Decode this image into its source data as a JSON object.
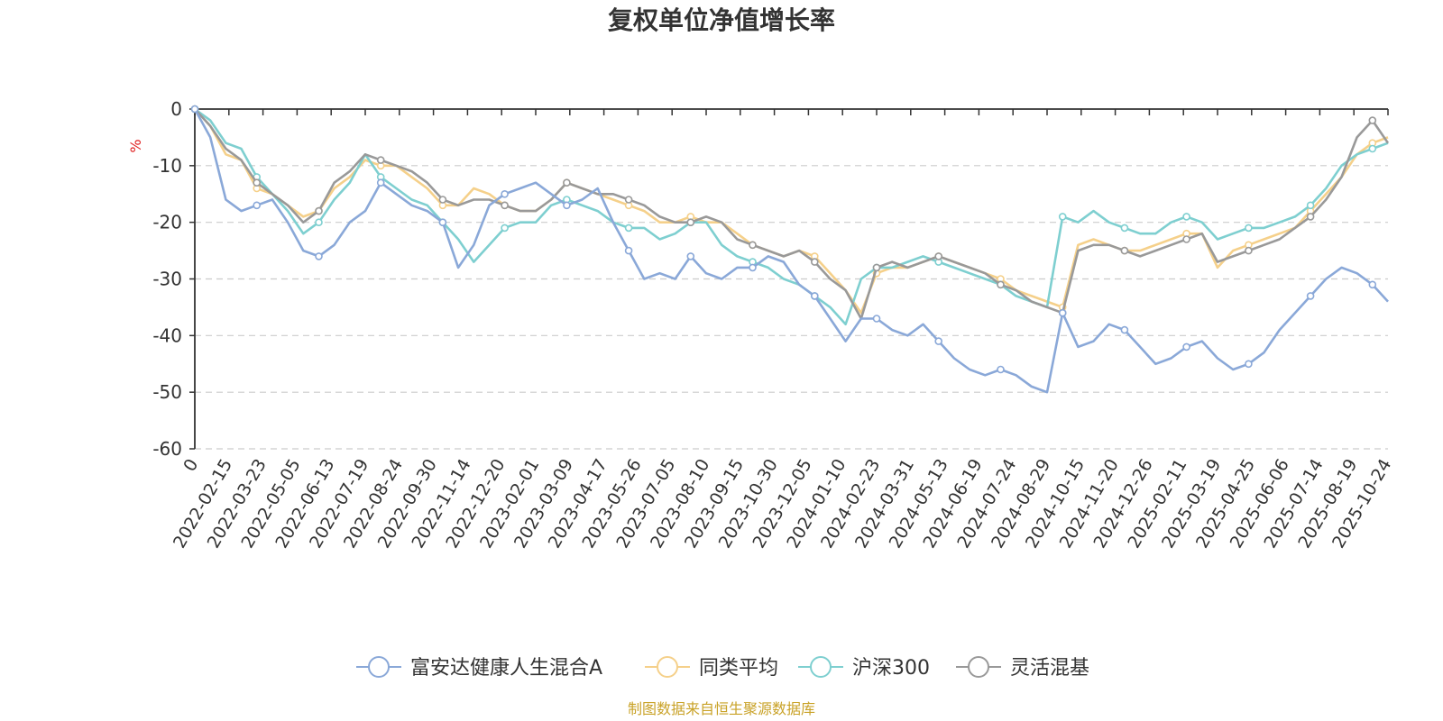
{
  "chart_data": {
    "type": "line",
    "title": "复权单位净值增长率",
    "ylabel": "%",
    "ylim": [
      -60,
      0
    ],
    "yticks": [
      "0",
      "-10",
      "-20",
      "-30",
      "-40",
      "-50",
      "-60"
    ],
    "x_tick_labels": [
      "0",
      "2022-02-15",
      "2022-03-23",
      "2022-05-05",
      "2022-06-13",
      "2022-07-19",
      "2022-08-24",
      "2022-09-30",
      "2022-11-14",
      "2022-12-20",
      "2023-02-01",
      "2023-03-09",
      "2023-04-17",
      "2023-05-26",
      "2023-07-05",
      "2023-08-10",
      "2023-09-15",
      "2023-10-30",
      "2023-12-05",
      "2024-01-10",
      "2024-02-23",
      "2024-03-31",
      "2024-05-13",
      "2024-06-19",
      "2024-07-24",
      "2024-08-29",
      "2024-10-15",
      "2024-11-20",
      "2024-12-26",
      "2025-02-11",
      "2025-03-19",
      "2025-04-25",
      "2025-06-06",
      "2025-07-14",
      "2025-08-19",
      "2025-10-24"
    ],
    "grid": "dashed horizontal",
    "legend_position": "bottom",
    "series": [
      {
        "name": "富安达健康人生混合A",
        "color": "#8aa8d8",
        "values": [
          0,
          -5,
          -16,
          -18,
          -17,
          -16,
          -20,
          -25,
          -26,
          -24,
          -20,
          -18,
          -13,
          -15,
          -17,
          -18,
          -20,
          -28,
          -24,
          -17,
          -15,
          -14,
          -13,
          -15,
          -17,
          -16,
          -14,
          -20,
          -25,
          -30,
          -29,
          -30,
          -26,
          -29,
          -30,
          -28,
          -28,
          -26,
          -27,
          -31,
          -33,
          -37,
          -41,
          -37,
          -37,
          -39,
          -40,
          -38,
          -41,
          -44,
          -46,
          -47,
          -46,
          -47,
          -49,
          -50,
          -36,
          -42,
          -41,
          -38,
          -39,
          -42,
          -45,
          -44,
          -42,
          -41,
          -44,
          -46,
          -45,
          -43,
          -39,
          -36,
          -33,
          -30,
          -28,
          -29,
          -31,
          -34
        ]
      },
      {
        "name": "同类平均",
        "color": "#f5d08a",
        "values": [
          0,
          -3,
          -8,
          -9,
          -14,
          -15,
          -17,
          -19,
          -18,
          -14,
          -12,
          -9,
          -10,
          -10,
          -12,
          -14,
          -17,
          -17,
          -14,
          -15,
          -17,
          -18,
          -18,
          -16,
          -13,
          -14,
          -15,
          -16,
          -17,
          -18,
          -20,
          -20,
          -19,
          -20,
          -20,
          -22,
          -24,
          -25,
          -26,
          -25,
          -26,
          -29,
          -32,
          -36,
          -29,
          -28,
          -28,
          -27,
          -26,
          -27,
          -28,
          -29,
          -30,
          -32,
          -33,
          -34,
          -35,
          -24,
          -23,
          -24,
          -25,
          -25,
          -24,
          -23,
          -22,
          -22,
          -28,
          -25,
          -24,
          -23,
          -22,
          -21,
          -18,
          -15,
          -12,
          -8,
          -6,
          -5
        ]
      },
      {
        "name": "沪深300",
        "color": "#7ecfd0",
        "values": [
          0,
          -2,
          -6,
          -7,
          -12,
          -15,
          -18,
          -22,
          -20,
          -16,
          -13,
          -8,
          -12,
          -14,
          -16,
          -17,
          -20,
          -23,
          -27,
          -24,
          -21,
          -20,
          -20,
          -17,
          -16,
          -17,
          -18,
          -20,
          -21,
          -21,
          -23,
          -22,
          -20,
          -20,
          -24,
          -26,
          -27,
          -28,
          -30,
          -31,
          -33,
          -35,
          -38,
          -30,
          -28,
          -28,
          -27,
          -26,
          -27,
          -28,
          -29,
          -30,
          -31,
          -33,
          -34,
          -35,
          -19,
          -20,
          -18,
          -20,
          -21,
          -22,
          -22,
          -20,
          -19,
          -20,
          -23,
          -22,
          -21,
          -21,
          -20,
          -19,
          -17,
          -14,
          -10,
          -8,
          -7,
          -6
        ]
      },
      {
        "name": "灵活混基",
        "color": "#999999",
        "values": [
          0,
          -3,
          -7,
          -9,
          -13,
          -15,
          -17,
          -20,
          -18,
          -13,
          -11,
          -8,
          -9,
          -10,
          -11,
          -13,
          -16,
          -17,
          -16,
          -16,
          -17,
          -18,
          -18,
          -16,
          -13,
          -14,
          -15,
          -15,
          -16,
          -17,
          -19,
          -20,
          -20,
          -19,
          -20,
          -23,
          -24,
          -25,
          -26,
          -25,
          -27,
          -30,
          -32,
          -37,
          -28,
          -27,
          -28,
          -27,
          -26,
          -27,
          -28,
          -29,
          -31,
          -32,
          -34,
          -35,
          -36,
          -25,
          -24,
          -24,
          -25,
          -26,
          -25,
          -24,
          -23,
          -22,
          -27,
          -26,
          -25,
          -24,
          -23,
          -21,
          -19,
          -16,
          -12,
          -5,
          -2,
          -6
        ]
      }
    ]
  },
  "source_text": "制图数据来自恒生聚源数据库"
}
